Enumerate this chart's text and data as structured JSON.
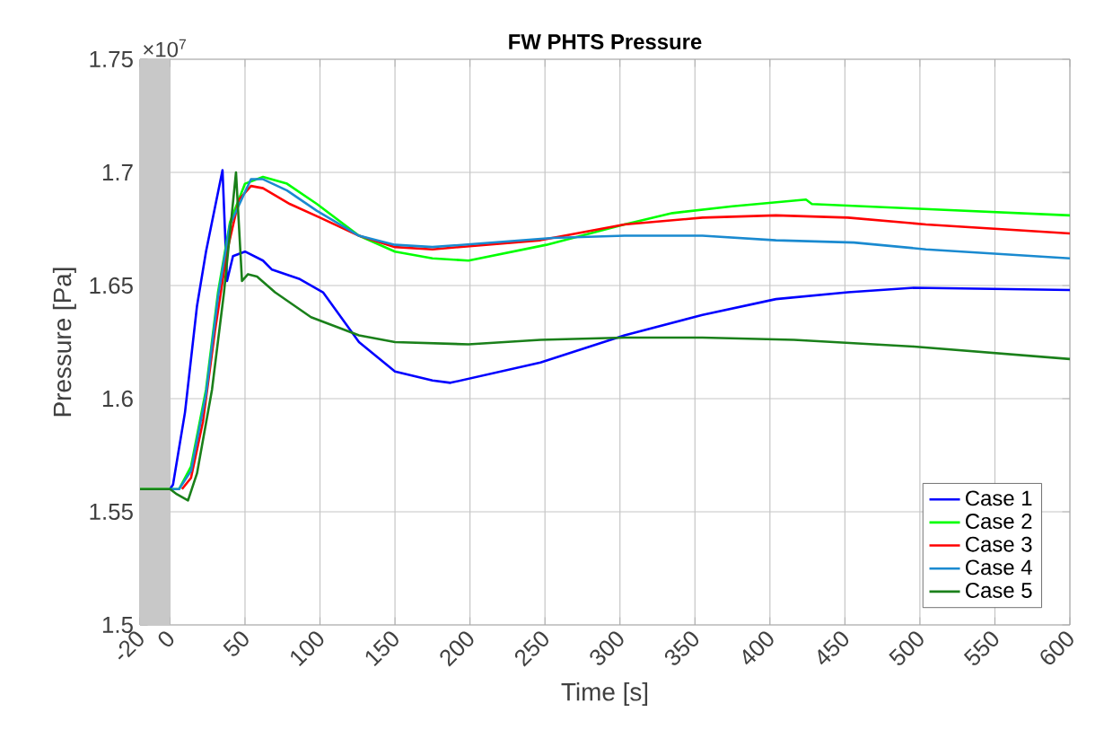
{
  "chart_data": {
    "type": "line",
    "title": "FW PHTS Pressure",
    "xlabel": "Time [s]",
    "ylabel": "Pressure [Pa]",
    "annotations": [
      "×10$^{7}$"
    ],
    "xlim": [
      -20,
      600
    ],
    "xticks": [
      -20,
      0,
      50,
      100,
      150,
      200,
      250,
      300,
      350,
      400,
      450,
      500,
      550,
      600
    ],
    "ylim": [
      1.5,
      1.75
    ],
    "yticks": [
      1.5,
      1.55,
      1.6,
      1.65,
      1.7,
      1.75
    ],
    "grid": true,
    "legend": "bottom right",
    "marker": "none",
    "line_style": "solid",
    "bands": [
      {
        "axis": "x",
        "from": -20,
        "to": 0,
        "color": "#c8c8c8"
      }
    ],
    "series": [
      {
        "name": "Case 1",
        "color": "#0000ff",
        "x": [
          0,
          2,
          10,
          18,
          24,
          35,
          38,
          42,
          50,
          62,
          68,
          86,
          102,
          126,
          150,
          175,
          187,
          247,
          303,
          355,
          404,
          452,
          496,
          600
        ],
        "values": [
          1.56,
          1.562,
          1.594,
          1.641,
          1.665,
          1.701,
          1.652,
          1.663,
          1.665,
          1.661,
          1.657,
          1.653,
          1.647,
          1.625,
          1.612,
          1.608,
          1.607,
          1.616,
          1.628,
          1.637,
          1.644,
          1.647,
          1.649,
          1.648
        ]
      },
      {
        "name": "Case 2",
        "color": "#00ff00",
        "x": [
          -20,
          0,
          6,
          14,
          24,
          32,
          40,
          50,
          62,
          78,
          98,
          126,
          150,
          175,
          199,
          251,
          303,
          335,
          375,
          424,
          428,
          496,
          600
        ],
        "values": [
          1.56,
          1.56,
          1.56,
          1.57,
          1.604,
          1.647,
          1.678,
          1.695,
          1.698,
          1.695,
          1.686,
          1.672,
          1.665,
          1.662,
          1.661,
          1.668,
          1.677,
          1.682,
          1.685,
          1.688,
          1.686,
          1.684,
          1.681
        ]
      },
      {
        "name": "Case 3",
        "color": "#ff0000",
        "x": [
          8,
          14,
          22,
          30,
          38,
          46,
          54,
          62,
          80,
          100,
          126,
          150,
          175,
          247,
          303,
          355,
          404,
          452,
          504,
          600
        ],
        "values": [
          1.56,
          1.565,
          1.59,
          1.63,
          1.665,
          1.688,
          1.694,
          1.693,
          1.686,
          1.68,
          1.672,
          1.667,
          1.666,
          1.67,
          1.677,
          1.68,
          1.681,
          1.68,
          1.677,
          1.673
        ]
      },
      {
        "name": "Case 4",
        "color": "#1a8ad0",
        "x": [
          0,
          6,
          14,
          24,
          32,
          40,
          54,
          62,
          78,
          98,
          126,
          150,
          175,
          255,
          303,
          355,
          404,
          456,
          504,
          600
        ],
        "values": [
          1.56,
          1.56,
          1.568,
          1.602,
          1.645,
          1.677,
          1.697,
          1.697,
          1.692,
          1.683,
          1.672,
          1.668,
          1.667,
          1.671,
          1.672,
          1.672,
          1.67,
          1.669,
          1.666,
          1.662
        ]
      },
      {
        "name": "Case 5",
        "color": "#1a801a",
        "x": [
          -20,
          0,
          4,
          12,
          18,
          28,
          36,
          44,
          48,
          52,
          58,
          70,
          94,
          126,
          150,
          199,
          247,
          303,
          355,
          416,
          496,
          600
        ],
        "values": [
          1.56,
          1.56,
          1.558,
          1.555,
          1.567,
          1.604,
          1.647,
          1.7,
          1.652,
          1.655,
          1.654,
          1.647,
          1.636,
          1.628,
          1.625,
          1.624,
          1.626,
          1.627,
          1.627,
          1.626,
          1.623,
          1.6175
        ]
      }
    ]
  }
}
